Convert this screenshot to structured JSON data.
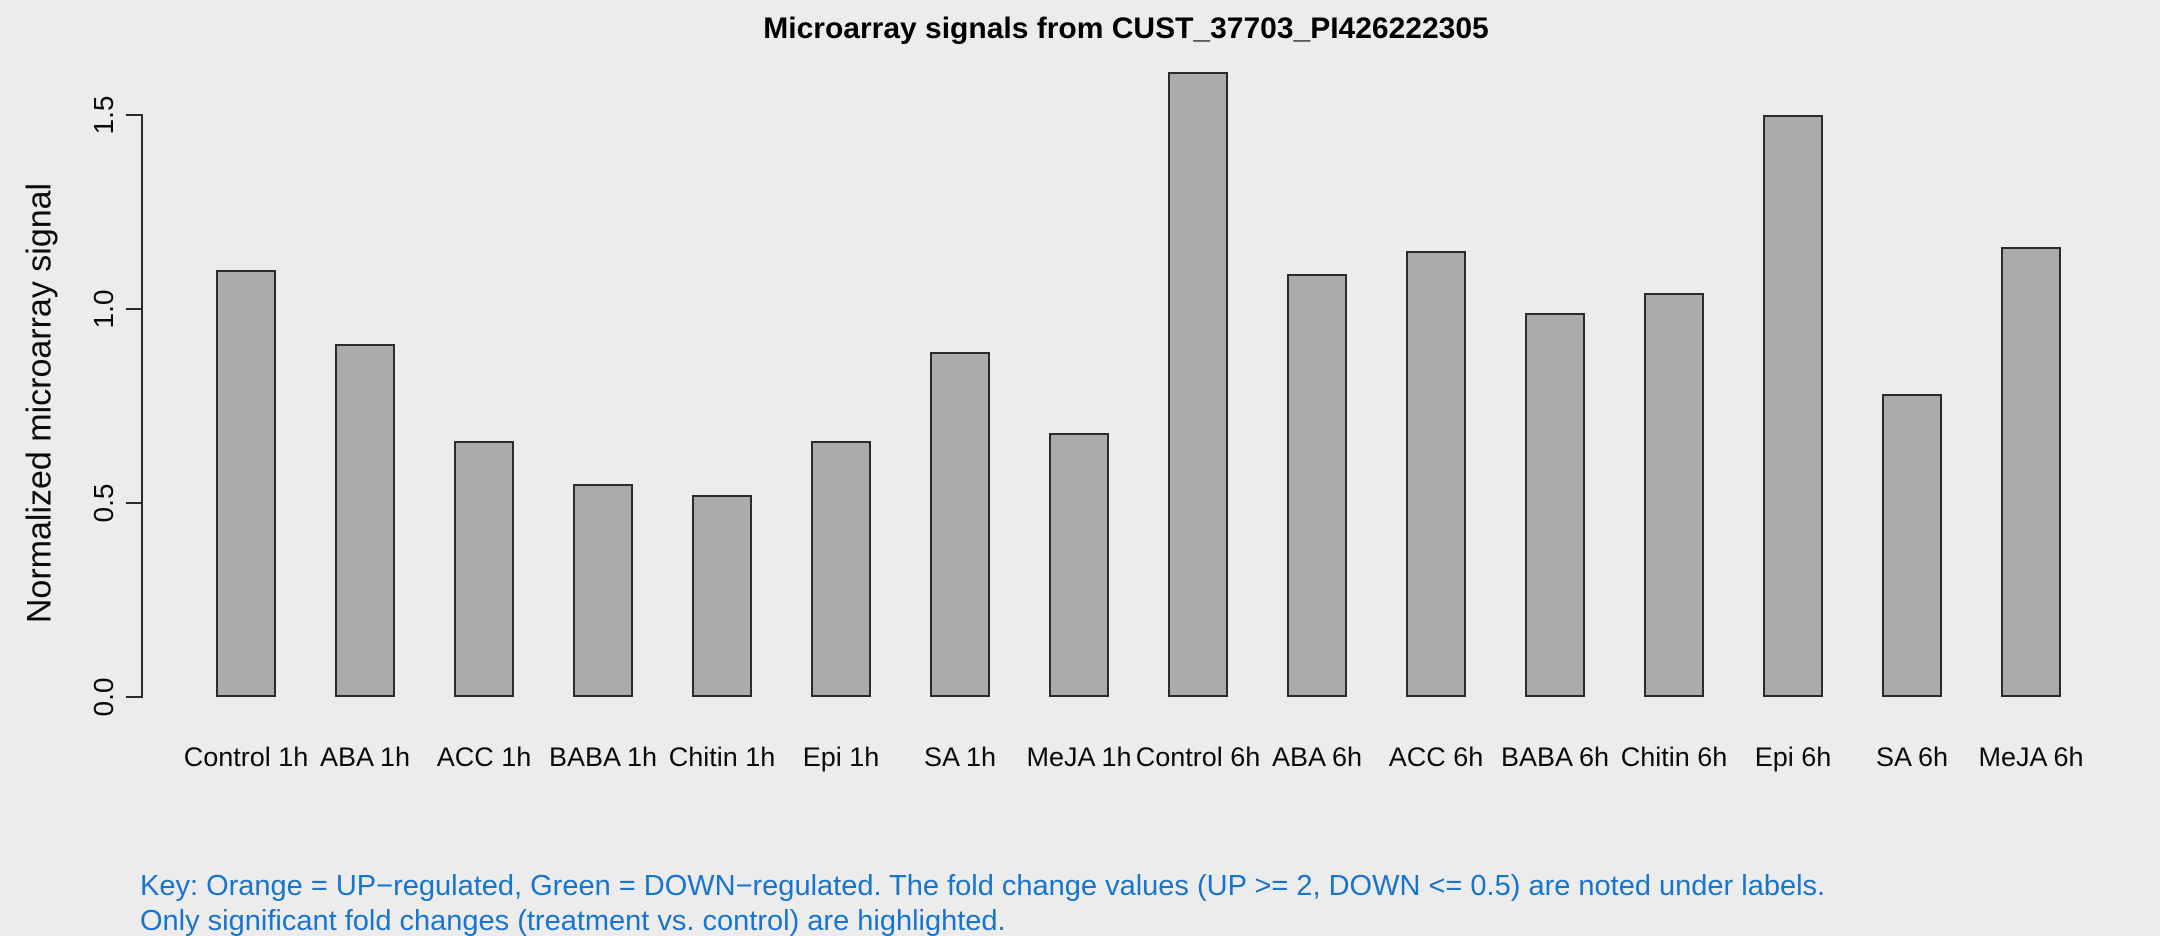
{
  "chart_data": {
    "type": "bar",
    "title": "Microarray signals from CUST_37703_PI426222305",
    "xlabel": "",
    "ylabel": "Normalized microarray signal",
    "categories": [
      "Control 1h",
      "ABA 1h",
      "ACC 1h",
      "BABA 1h",
      "Chitin 1h",
      "Epi 1h",
      "SA 1h",
      "MeJA 1h",
      "Control 6h",
      "ABA 6h",
      "ACC 6h",
      "BABA 6h",
      "Chitin 6h",
      "Epi 6h",
      "SA 6h",
      "MeJA 6h"
    ],
    "values": [
      1.1,
      0.91,
      0.66,
      0.55,
      0.52,
      0.66,
      0.89,
      0.68,
      1.61,
      1.09,
      1.15,
      0.99,
      1.04,
      1.5,
      0.78,
      1.16
    ],
    "yticks": [
      "0.0",
      "0.5",
      "1.0",
      "1.5"
    ],
    "ylim": [
      0.0,
      1.65
    ],
    "axis_range_drawn": [
      0.0,
      1.5
    ],
    "grid": false,
    "legend_position": "none",
    "bar_color": "#ababab",
    "bar_border_color": "#2b2b2b",
    "background_color": "#ececec"
  },
  "footnote": {
    "line1": "Key: Orange = UP−regulated, Green = DOWN−regulated. The fold change values (UP >= 2, DOWN <= 0.5) are noted under labels.",
    "line2": "Only significant fold changes (treatment vs. control) are highlighted.",
    "color": "#1874cd"
  }
}
